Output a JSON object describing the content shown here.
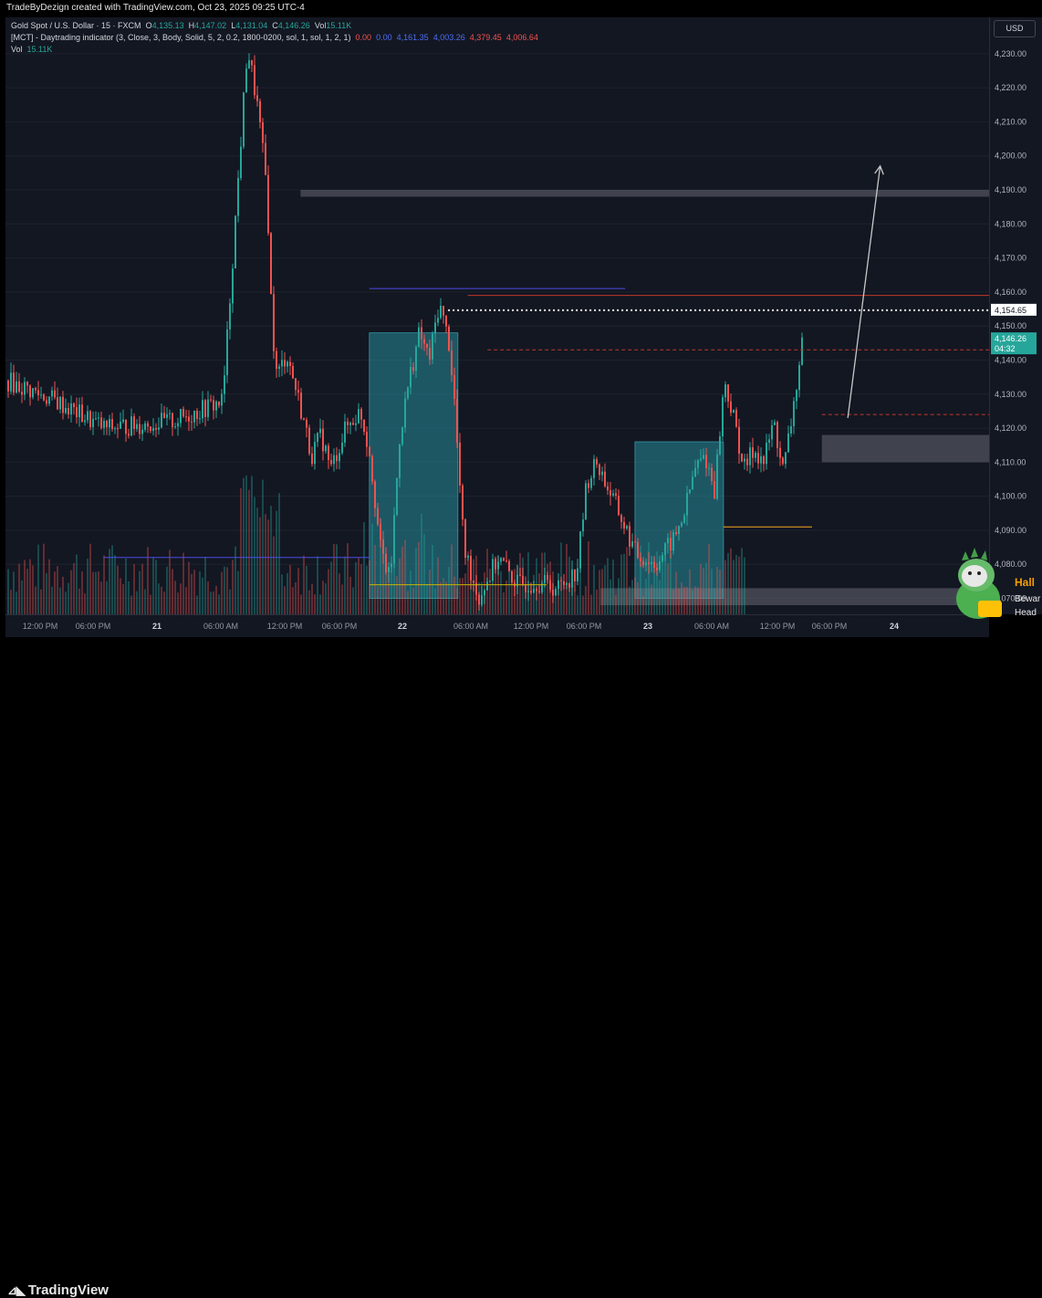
{
  "header": {
    "caption": "TradeByDezign created with TradingView.com, Oct 23, 2025 09:25 UTC-4"
  },
  "legend": {
    "symbol": "Gold Spot / U.S. Dollar · 15 · FXCM",
    "o_label": "O",
    "o": "4,135.13",
    "h_label": "H",
    "h": "4,147.02",
    "l_label": "L",
    "l": "4,131.04",
    "c_label": "C",
    "c": "4,146.26",
    "vol_label": "Vol",
    "vol": "15.11K",
    "indicator": "[MCT] - Daytrading indicator (3, Close, 3, Body, Solid, 5, 2, 0.2, 1800-0200, sol, 1, sol, 1, 2, 1)",
    "ind_values": [
      "0.00",
      "0.00",
      "4,161.35",
      "4,003.26",
      "4,379.45",
      "4,006.64"
    ],
    "vol_row_label": "Vol",
    "vol_row_value": "15.11K"
  },
  "price_axis": {
    "currency_button": "USD",
    "ticks": [
      "4,230.00",
      "4,220.00",
      "4,210.00",
      "4,200.00",
      "4,190.00",
      "4,180.00",
      "4,170.00",
      "4,160.00",
      "4,150.00",
      "4,140.00",
      "4,130.00",
      "4,120.00",
      "4,110.00",
      "4,100.00",
      "4,090.00",
      "4,080.00",
      "4,070.00"
    ],
    "marker_level": "4,154.65",
    "last_price": "4,146.26",
    "countdown": "04:32"
  },
  "time_axis": {
    "labels": [
      "12:00 PM",
      "06:00 PM",
      "21",
      "06:00 AM",
      "12:00 PM",
      "06:00 PM",
      "22",
      "06:00 AM",
      "12:00 PM",
      "06:00 PM",
      "23",
      "06:00 AM",
      "12:00 PM",
      "06:00 PM",
      "24"
    ]
  },
  "colors": {
    "up": "#26a69a",
    "down": "#f05350",
    "background": "#131722",
    "zone_teal": "#1f5f69",
    "zone_gray": "#3a3d46",
    "blue_line": "#4c4ce6",
    "orange_line": "#f5a623"
  },
  "footer": {
    "brand": "TradingView",
    "logo_icon": "tradingview-logo-icon"
  },
  "banner": {
    "title": "Hall",
    "line1": "Bewar",
    "line2": "Head"
  },
  "chart_data": {
    "type": "candlestick",
    "symbol": "XAUUSD",
    "timeframe": "15",
    "ylim": [
      4068,
      4238
    ],
    "x_labels": [
      "12:00 PM",
      "06:00 PM",
      "21",
      "06:00 AM",
      "12:00 PM",
      "06:00 PM",
      "22",
      "06:00 AM",
      "12:00 PM",
      "06:00 PM",
      "23",
      "06:00 AM",
      "12:00 PM",
      "06:00 PM",
      "24"
    ],
    "close_path": [
      [
        0.0,
        4134
      ],
      [
        0.05,
        4128
      ],
      [
        0.1,
        4120
      ],
      [
        0.17,
        4122
      ],
      [
        0.22,
        4128
      ],
      [
        0.245,
        4232
      ],
      [
        0.255,
        4215
      ],
      [
        0.265,
        4190
      ],
      [
        0.27,
        4150
      ],
      [
        0.275,
        4135
      ],
      [
        0.285,
        4142
      ],
      [
        0.3,
        4125
      ],
      [
        0.31,
        4112
      ],
      [
        0.32,
        4118
      ],
      [
        0.33,
        4108
      ],
      [
        0.345,
        4120
      ],
      [
        0.36,
        4125
      ],
      [
        0.37,
        4112
      ],
      [
        0.38,
        4085
      ],
      [
        0.39,
        4075
      ],
      [
        0.4,
        4118
      ],
      [
        0.41,
        4135
      ],
      [
        0.42,
        4148
      ],
      [
        0.43,
        4140
      ],
      [
        0.44,
        4157
      ],
      [
        0.45,
        4145
      ],
      [
        0.455,
        4130
      ],
      [
        0.465,
        4085
      ],
      [
        0.48,
        4070
      ],
      [
        0.5,
        4082
      ],
      [
        0.52,
        4074
      ],
      [
        0.54,
        4075
      ],
      [
        0.56,
        4073
      ],
      [
        0.58,
        4078
      ],
      [
        0.59,
        4104
      ],
      [
        0.6,
        4110
      ],
      [
        0.62,
        4097
      ],
      [
        0.64,
        4083
      ],
      [
        0.66,
        4080
      ],
      [
        0.68,
        4088
      ],
      [
        0.69,
        4096
      ],
      [
        0.7,
        4108
      ],
      [
        0.71,
        4112
      ],
      [
        0.72,
        4102
      ],
      [
        0.73,
        4134
      ],
      [
        0.74,
        4122
      ],
      [
        0.75,
        4108
      ],
      [
        0.76,
        4114
      ],
      [
        0.77,
        4110
      ],
      [
        0.78,
        4122
      ],
      [
        0.79,
        4107
      ],
      [
        0.8,
        4126
      ],
      [
        0.81,
        4146
      ]
    ],
    "volume_relative": "bars along bottom of chart",
    "zones": [
      {
        "type": "box",
        "color": "teal",
        "x": [
          0.37,
          0.46
        ],
        "y": [
          4070,
          4148
        ]
      },
      {
        "type": "box",
        "color": "teal",
        "x": [
          0.64,
          0.73
        ],
        "y": [
          4070,
          4116
        ]
      },
      {
        "type": "box",
        "color": "gray",
        "x": [
          0.605,
          1.0
        ],
        "y": [
          4068,
          4073
        ]
      },
      {
        "type": "box",
        "color": "gray",
        "x": [
          0.83,
          1.0
        ],
        "y": [
          4110,
          4118
        ]
      },
      {
        "type": "box",
        "color": "gray",
        "x": [
          0.3,
          1.0
        ],
        "y": [
          4188,
          4190
        ]
      }
    ],
    "levels": [
      {
        "price": 4154.65,
        "style": "dotted",
        "color": "white"
      },
      {
        "price": 4161,
        "style": "solid",
        "color": "blue",
        "x": [
          0.37,
          0.63
        ]
      },
      {
        "price": 4159,
        "style": "solid",
        "color": "red",
        "x": [
          0.47,
          1.0
        ]
      },
      {
        "price": 4143,
        "style": "dashed",
        "color": "red",
        "x": [
          0.49,
          1.0
        ]
      },
      {
        "price": 4082,
        "style": "solid",
        "color": "blue",
        "x": [
          0.1,
          0.37
        ]
      },
      {
        "price": 4091,
        "style": "solid",
        "color": "orange",
        "x": [
          0.73,
          0.82
        ]
      },
      {
        "price": 4074,
        "style": "solid",
        "color": "yellow",
        "x": [
          0.37,
          0.55
        ]
      },
      {
        "price": 4124,
        "style": "dashed",
        "color": "red",
        "x": [
          0.83,
          1.0
        ]
      }
    ],
    "projection_arrow": {
      "from": [
        0.81,
        4123
      ],
      "to": [
        0.88,
        4197
      ]
    }
  }
}
